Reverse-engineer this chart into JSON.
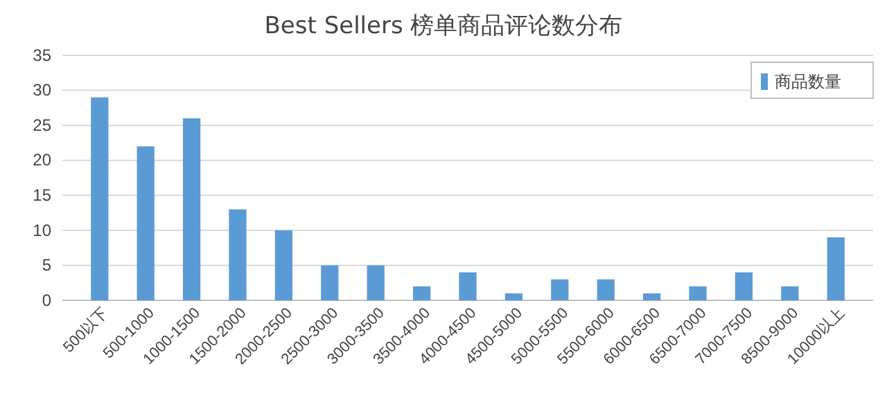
{
  "chart_data": {
    "type": "bar",
    "title": "Best Sellers 榜单商品评论数分布",
    "categories": [
      "500以下",
      "500-1000",
      "1000-1500",
      "1500-2000",
      "2000-2500",
      "2500-3000",
      "3000-3500",
      "3500-4000",
      "4000-4500",
      "4500-5000",
      "5000-5500",
      "5500-6000",
      "6000-6500",
      "6500-7000",
      "7000-7500",
      "8500-9000",
      "10000以上"
    ],
    "series": [
      {
        "name": "商品数量",
        "color": "#5b9bd5",
        "values": [
          29,
          22,
          26,
          13,
          10,
          5,
          5,
          2,
          4,
          1,
          3,
          3,
          1,
          2,
          4,
          2,
          9
        ]
      }
    ],
    "ylim": [
      0,
      35
    ],
    "yticks": [
      0,
      5,
      10,
      15,
      20,
      25,
      30,
      35
    ],
    "grid": "y",
    "legend": "top right"
  }
}
